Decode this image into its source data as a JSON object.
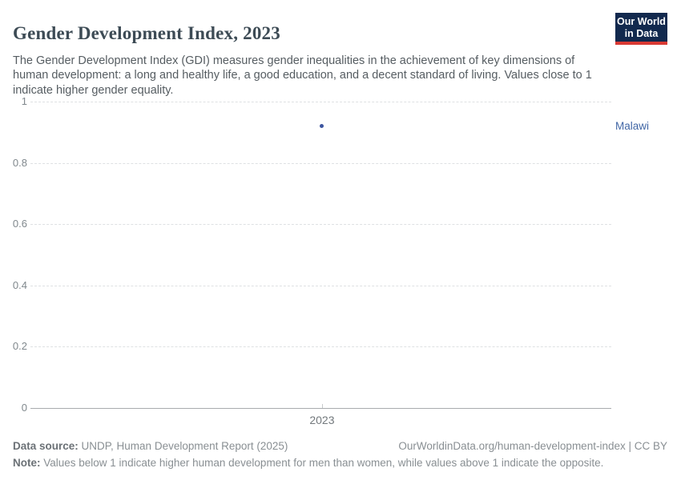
{
  "header": {
    "title": "Gender Development Index, 2023",
    "subtitle": "The Gender Development Index (GDI) measures gender inequalities in the achievement of key dimensions of human development: a long and healthy life, a good education, and a decent standard of living. Values close to 1 indicate higher gender equality.",
    "logo": {
      "line1": "Our World",
      "line2": "in Data",
      "bg_color": "#12294e",
      "stripe_color": "#d93a34"
    }
  },
  "chart_data": {
    "type": "scatter",
    "title": "Gender Development Index, 2023",
    "x": [
      2023
    ],
    "xtick_labels": [
      "2023"
    ],
    "series": [
      {
        "name": "Malawi",
        "values": [
          0.92
        ],
        "point_color": "#3d55a0",
        "label_color": "#4166a5"
      }
    ],
    "ylim": [
      0,
      1
    ],
    "yticks": [
      0,
      0.2,
      0.4,
      0.6,
      0.8,
      1
    ],
    "ytick_labels": [
      "0",
      "0.2",
      "0.4",
      "0.6",
      "0.8",
      "1"
    ],
    "xlabel": "",
    "ylabel": "",
    "grid": true,
    "gridline_style": "dashed",
    "legend_position": "right-of-point"
  },
  "footer": {
    "source_label": "Data source:",
    "source_text": " UNDP, Human Development Report (2025)",
    "note_label": "Note:",
    "note_text": " Values below 1 indicate higher human development for men than women, while values above 1 indicate the opposite.",
    "license_text": "OurWorldinData.org/human-development-index | CC BY"
  }
}
